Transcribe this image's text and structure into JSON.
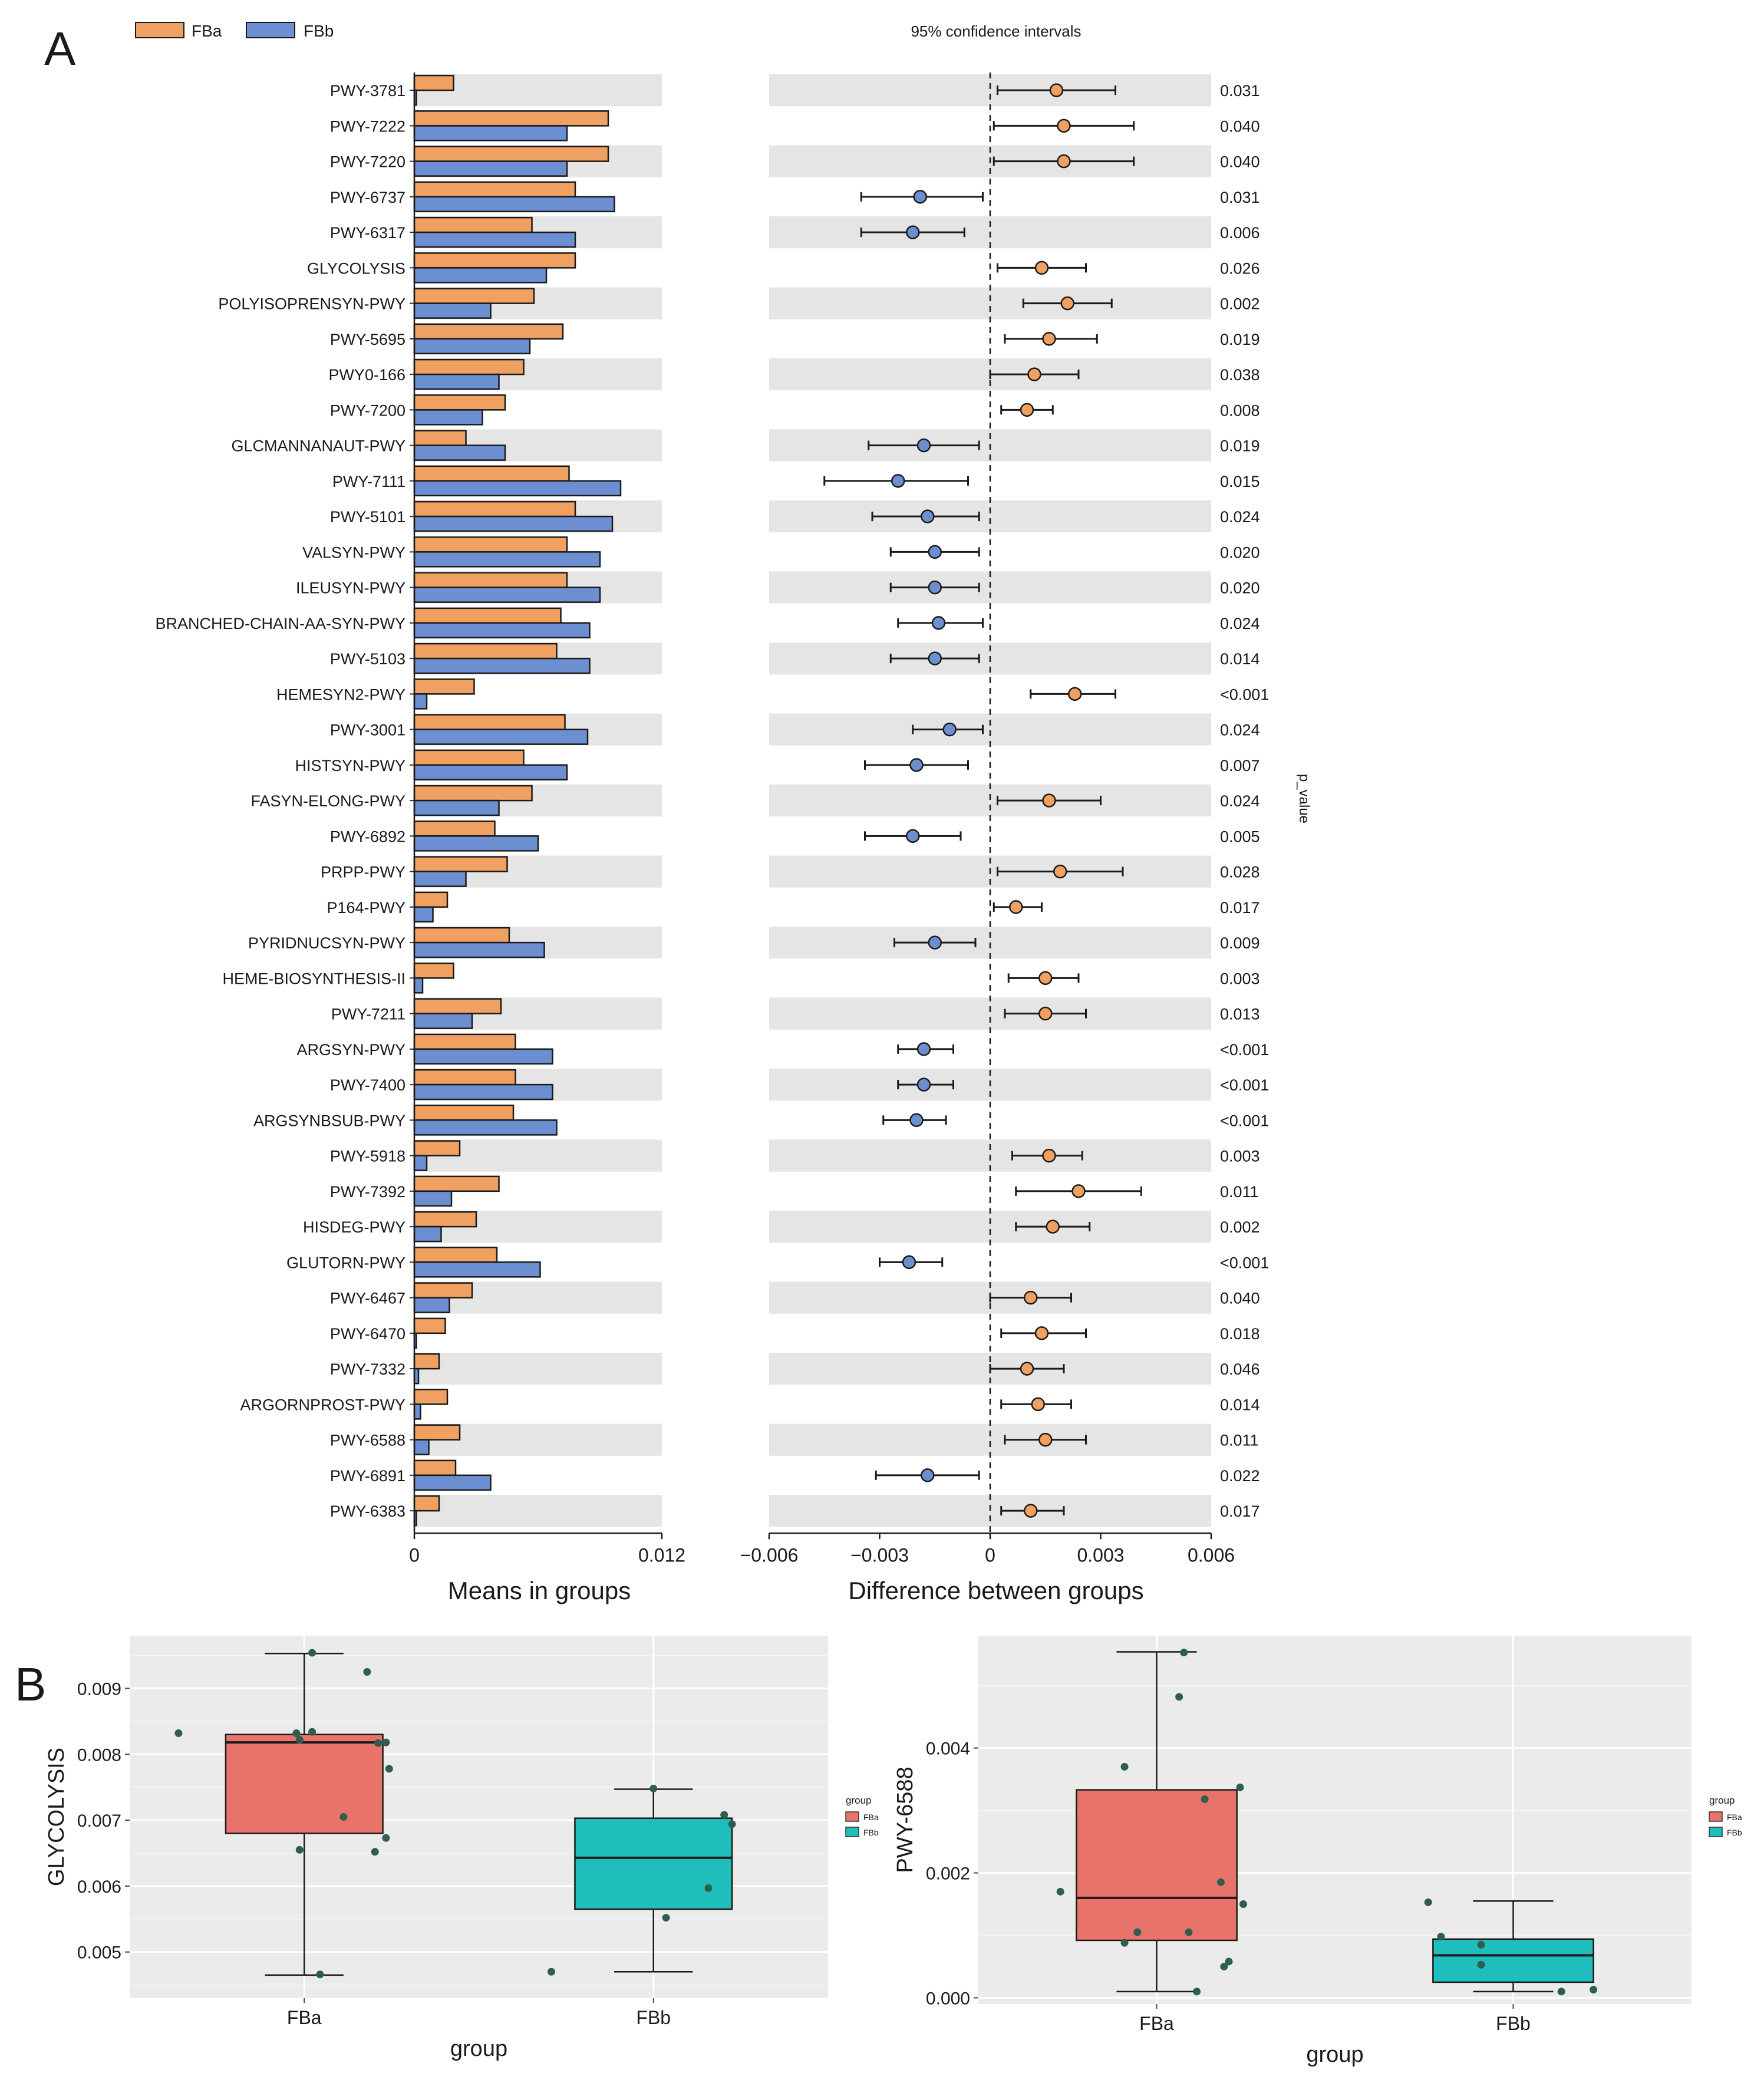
{
  "panels": {
    "a": "A",
    "b": "B"
  },
  "colors": {
    "fba": "#f0a060",
    "fbb": "#6b8fd0",
    "stripe": "#e5e5e5",
    "box_fba": "#e8736b",
    "box_fbb": "#1fbdbb",
    "dot": "#2e5e4e",
    "panel_bg": "#ebebeb"
  },
  "chart_data": [
    {
      "type": "bar",
      "title": "",
      "xlabel": "Means in groups",
      "xlim": [
        0,
        0.012
      ],
      "xticks": [
        "0",
        "0.012"
      ],
      "legend": {
        "placement": "top-left",
        "entries": [
          "FBa",
          "FBb"
        ]
      },
      "categories": [
        "PWY-3781",
        "PWY-7222",
        "PWY-7220",
        "PWY-6737",
        "PWY-6317",
        "GLYCOLYSIS",
        "POLYISOPRENSYN-PWY",
        "PWY-5695",
        "PWY0-166",
        "PWY-7200",
        "GLCMANNANAUT-PWY",
        "PWY-7111",
        "PWY-5101",
        "VALSYN-PWY",
        "ILEUSYN-PWY",
        "BRANCHED-CHAIN-AA-SYN-PWY",
        "PWY-5103",
        "HEMESYN2-PWY",
        "PWY-3001",
        "HISTSYN-PWY",
        "FASYN-ELONG-PWY",
        "PWY-6892",
        "PRPP-PWY",
        "P164-PWY",
        "PYRIDNUCSYN-PWY",
        "HEME-BIOSYNTHESIS-II",
        "PWY-7211",
        "ARGSYN-PWY",
        "PWY-7400",
        "ARGSYNBSUB-PWY",
        "PWY-5918",
        "PWY-7392",
        "HISDEG-PWY",
        "GLUTORN-PWY",
        "PWY-6467",
        "PWY-6470",
        "PWY-7332",
        "ARGORNPROST-PWY",
        "PWY-6588",
        "PWY-6891",
        "PWY-6383"
      ],
      "series": [
        {
          "name": "FBa",
          "values": [
            0.0019,
            0.0094,
            0.0094,
            0.0078,
            0.0057,
            0.0078,
            0.0058,
            0.0072,
            0.0053,
            0.0044,
            0.0025,
            0.0075,
            0.0078,
            0.0074,
            0.0074,
            0.0071,
            0.0069,
            0.0029,
            0.0073,
            0.0053,
            0.0057,
            0.0039,
            0.0045,
            0.0016,
            0.0046,
            0.0019,
            0.0042,
            0.0049,
            0.0049,
            0.0048,
            0.0022,
            0.0041,
            0.003,
            0.004,
            0.0028,
            0.0015,
            0.0012,
            0.0016,
            0.0022,
            0.002,
            0.0012
          ]
        },
        {
          "name": "FBb",
          "values": [
            0.0001,
            0.0074,
            0.0074,
            0.0097,
            0.0078,
            0.0064,
            0.0037,
            0.0056,
            0.0041,
            0.0033,
            0.0044,
            0.01,
            0.0096,
            0.009,
            0.009,
            0.0085,
            0.0085,
            0.0006,
            0.0084,
            0.0074,
            0.0041,
            0.006,
            0.0025,
            0.0009,
            0.0063,
            0.0004,
            0.0028,
            0.0067,
            0.0067,
            0.0069,
            0.0006,
            0.0018,
            0.0013,
            0.0061,
            0.0017,
            0.0001,
            0.0002,
            0.0003,
            0.0007,
            0.0037,
            0.0001
          ]
        }
      ]
    },
    {
      "type": "scatter",
      "title": "95% confidence intervals",
      "xlabel": "Difference between groups",
      "right_axis_label": "p_value",
      "xlim": [
        -0.006,
        0.006
      ],
      "xticks": [
        "−0.006",
        "−0.003",
        "0",
        "0.003",
        "0.006"
      ],
      "categories": [
        "PWY-3781",
        "PWY-7222",
        "PWY-7220",
        "PWY-6737",
        "PWY-6317",
        "GLYCOLYSIS",
        "POLYISOPRENSYN-PWY",
        "PWY-5695",
        "PWY0-166",
        "PWY-7200",
        "GLCMANNANAUT-PWY",
        "PWY-7111",
        "PWY-5101",
        "VALSYN-PWY",
        "ILEUSYN-PWY",
        "BRANCHED-CHAIN-AA-SYN-PWY",
        "PWY-5103",
        "HEMESYN2-PWY",
        "PWY-3001",
        "HISTSYN-PWY",
        "FASYN-ELONG-PWY",
        "PWY-6892",
        "PRPP-PWY",
        "P164-PWY",
        "PYRIDNUCSYN-PWY",
        "HEME-BIOSYNTHESIS-II",
        "PWY-7211",
        "ARGSYN-PWY",
        "PWY-7400",
        "ARGSYNBSUB-PWY",
        "PWY-5918",
        "PWY-7392",
        "HISDEG-PWY",
        "GLUTORN-PWY",
        "PWY-6467",
        "PWY-6470",
        "PWY-7332",
        "ARGORNPROST-PWY",
        "PWY-6588",
        "PWY-6891",
        "PWY-6383"
      ],
      "estimate": [
        0.0018,
        0.002,
        0.002,
        -0.0019,
        -0.0021,
        0.0014,
        0.0021,
        0.0016,
        0.0012,
        0.001,
        -0.0018,
        -0.0025,
        -0.0017,
        -0.0015,
        -0.0015,
        -0.0014,
        -0.0015,
        0.0023,
        -0.0011,
        -0.002,
        0.0016,
        -0.0021,
        0.0019,
        0.0007,
        -0.0015,
        0.0015,
        0.0015,
        -0.0018,
        -0.0018,
        -0.002,
        0.0016,
        0.0024,
        0.0017,
        -0.0022,
        0.0011,
        0.0014,
        0.001,
        0.0013,
        0.0015,
        -0.0017,
        0.0011
      ],
      "ci_low": [
        0.0002,
        0.0001,
        0.0001,
        -0.0035,
        -0.0035,
        0.0002,
        0.0009,
        0.0004,
        0.0,
        0.0003,
        -0.0033,
        -0.0045,
        -0.0032,
        -0.0027,
        -0.0027,
        -0.0025,
        -0.0027,
        0.0011,
        -0.0021,
        -0.0034,
        0.0002,
        -0.0034,
        0.0002,
        0.0001,
        -0.0026,
        0.0005,
        0.0004,
        -0.0025,
        -0.0025,
        -0.0029,
        0.0006,
        0.0007,
        0.0007,
        -0.003,
        0.0,
        0.0003,
        0.0,
        0.0003,
        0.0004,
        -0.0031,
        0.0003
      ],
      "ci_high": [
        0.0034,
        0.0039,
        0.0039,
        -0.0002,
        -0.0007,
        0.0026,
        0.0033,
        0.0029,
        0.0024,
        0.0017,
        -0.0003,
        -0.0006,
        -0.0003,
        -0.0003,
        -0.0003,
        -0.0002,
        -0.0003,
        0.0034,
        -0.0002,
        -0.0006,
        0.003,
        -0.0008,
        0.0036,
        0.0014,
        -0.0004,
        0.0024,
        0.0026,
        -0.001,
        -0.001,
        -0.0012,
        0.0025,
        0.0041,
        0.0027,
        -0.0013,
        0.0022,
        0.0026,
        0.002,
        0.0022,
        0.0026,
        -0.0003,
        0.002
      ],
      "p_values": [
        "0.031",
        "0.040",
        "0.040",
        "0.031",
        "0.006",
        "0.026",
        "0.002",
        "0.019",
        "0.038",
        "0.008",
        "0.019",
        "0.015",
        "0.024",
        "0.020",
        "0.020",
        "0.024",
        "0.014",
        "<0.001",
        "0.024",
        "0.007",
        "0.024",
        "0.005",
        "0.028",
        "0.017",
        "0.009",
        "0.003",
        "0.013",
        "<0.001",
        "<0.001",
        "<0.001",
        "0.003",
        "0.011",
        "0.002",
        "<0.001",
        "0.040",
        "0.018",
        "0.046",
        "0.014",
        "0.011",
        "0.022",
        "0.017"
      ]
    },
    {
      "type": "box",
      "title": "",
      "xlabel": "group",
      "ylabel": "GLYCOLYSIS",
      "ylim": [
        0.0043,
        0.0098
      ],
      "yticks": [
        0.005,
        0.006,
        0.007,
        0.008,
        0.009
      ],
      "ytick_labels": [
        "0.005",
        "0.006",
        "0.007",
        "0.008",
        "0.009"
      ],
      "categories": [
        "FBa",
        "FBb"
      ],
      "legend": {
        "title": "group",
        "entries": [
          "FBa",
          "FBb"
        ],
        "placement": "right"
      },
      "boxes": [
        {
          "name": "FBa",
          "whisker_low": 0.00465,
          "q1": 0.0068,
          "median": 0.00818,
          "q3": 0.0083,
          "whisker_high": 0.00953
        },
        {
          "name": "FBb",
          "whisker_low": 0.0047,
          "q1": 0.00565,
          "median": 0.00643,
          "q3": 0.00703,
          "whisker_high": 0.00747
        }
      ],
      "points": [
        {
          "g": 0,
          "dx": -0.8,
          "y": 0.00832
        },
        {
          "g": 0,
          "dx": -0.05,
          "y": 0.00832
        },
        {
          "g": 0,
          "dx": -0.03,
          "y": 0.00822
        },
        {
          "g": 0,
          "dx": 0.05,
          "y": 0.00834
        },
        {
          "g": 0,
          "dx": -0.03,
          "y": 0.00655
        },
        {
          "g": 0,
          "dx": 0.05,
          "y": 0.00954
        },
        {
          "g": 0,
          "dx": 0.25,
          "y": 0.00705
        },
        {
          "g": 0,
          "dx": 0.4,
          "y": 0.00925
        },
        {
          "g": 0,
          "dx": 0.45,
          "y": 0.00652
        },
        {
          "g": 0,
          "dx": 0.47,
          "y": 0.00817
        },
        {
          "g": 0,
          "dx": 0.52,
          "y": 0.00818
        },
        {
          "g": 0,
          "dx": 0.54,
          "y": 0.00778
        },
        {
          "g": 0,
          "dx": 0.52,
          "y": 0.00673
        },
        {
          "g": 0,
          "dx": 0.1,
          "y": 0.00466
        },
        {
          "g": 1,
          "dx": -0.65,
          "y": 0.0047
        },
        {
          "g": 1,
          "dx": 0.0,
          "y": 0.00748
        },
        {
          "g": 1,
          "dx": 0.08,
          "y": 0.00552
        },
        {
          "g": 1,
          "dx": 0.35,
          "y": 0.00597
        },
        {
          "g": 1,
          "dx": 0.45,
          "y": 0.00708
        },
        {
          "g": 1,
          "dx": 0.5,
          "y": 0.00694
        }
      ]
    },
    {
      "type": "box",
      "title": "",
      "xlabel": "group",
      "ylabel": "PWY-6588",
      "ylim": [
        -0.0001,
        0.0058
      ],
      "yticks": [
        0.0,
        0.002,
        0.004
      ],
      "ytick_labels": [
        "0.000",
        "0.002",
        "0.004"
      ],
      "categories": [
        "FBa",
        "FBb"
      ],
      "legend": {
        "title": "group",
        "entries": [
          "FBa",
          "FBb"
        ],
        "placement": "right"
      },
      "boxes": [
        {
          "name": "FBa",
          "whisker_low": 0.0001,
          "q1": 0.00092,
          "median": 0.0016,
          "q3": 0.00333,
          "whisker_high": 0.00554
        },
        {
          "name": "FBb",
          "whisker_low": 0.0001,
          "q1": 0.00025,
          "median": 0.00068,
          "q3": 0.00094,
          "whisker_high": 0.00155
        }
      ],
      "points": [
        {
          "g": 0,
          "dx": -0.6,
          "y": 0.0017
        },
        {
          "g": 0,
          "dx": -0.2,
          "y": 0.0037
        },
        {
          "g": 0,
          "dx": -0.2,
          "y": 0.00088
        },
        {
          "g": 0,
          "dx": -0.12,
          "y": 0.00105
        },
        {
          "g": 0,
          "dx": 0.14,
          "y": 0.00482
        },
        {
          "g": 0,
          "dx": 0.17,
          "y": 0.00553
        },
        {
          "g": 0,
          "dx": 0.2,
          "y": 0.00105
        },
        {
          "g": 0,
          "dx": 0.25,
          "y": 0.0001
        },
        {
          "g": 0,
          "dx": 0.3,
          "y": 0.00318
        },
        {
          "g": 0,
          "dx": 0.4,
          "y": 0.00185
        },
        {
          "g": 0,
          "dx": 0.42,
          "y": 0.0005
        },
        {
          "g": 0,
          "dx": 0.45,
          "y": 0.00058
        },
        {
          "g": 0,
          "dx": 0.52,
          "y": 0.00337
        },
        {
          "g": 0,
          "dx": 0.54,
          "y": 0.0015
        },
        {
          "g": 1,
          "dx": -0.53,
          "y": 0.00153
        },
        {
          "g": 1,
          "dx": -0.45,
          "y": 0.00098
        },
        {
          "g": 1,
          "dx": -0.2,
          "y": 0.00085
        },
        {
          "g": 1,
          "dx": -0.2,
          "y": 0.00053
        },
        {
          "g": 1,
          "dx": 0.3,
          "y": 0.0001
        },
        {
          "g": 1,
          "dx": 0.5,
          "y": 0.00013
        }
      ]
    }
  ]
}
